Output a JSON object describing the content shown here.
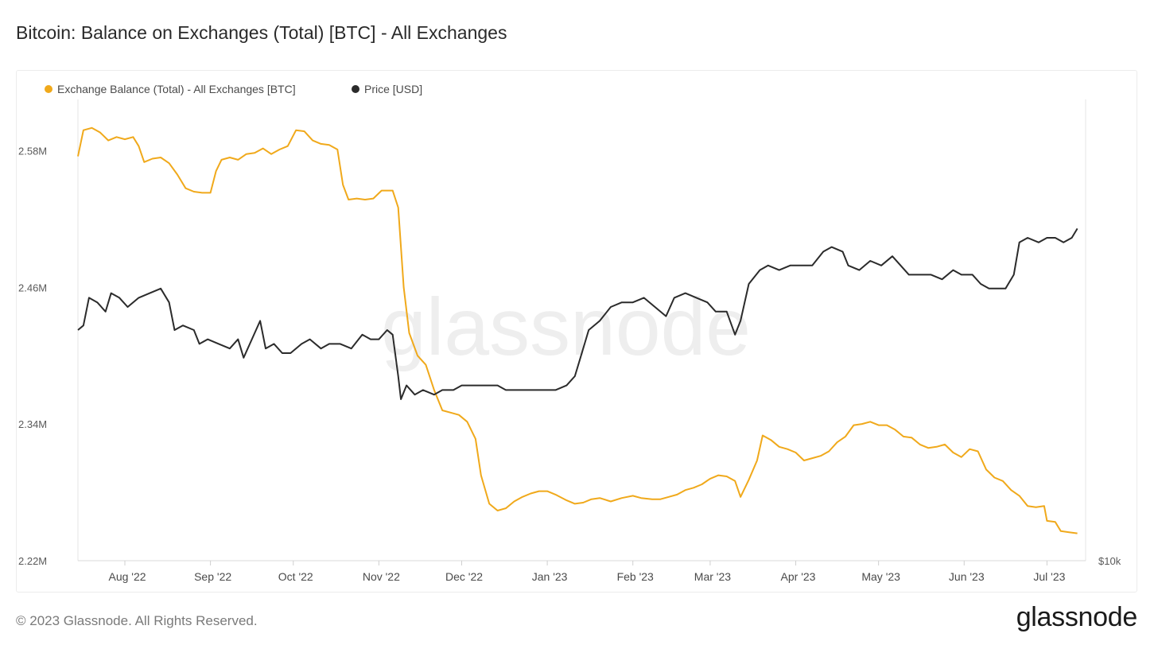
{
  "page": {
    "title": "Bitcoin: Balance on Exchanges (Total) [BTC] - All Exchanges",
    "footer": "© 2023 Glassnode. All Rights Reserved.",
    "logo": "glassnode",
    "watermark": "glassnode"
  },
  "chart_data": {
    "type": "line",
    "title": "Bitcoin: Balance on Exchanges (Total) [BTC] - All Exchanges",
    "legend": {
      "placement": "top-left"
    },
    "grid": false,
    "colors": {
      "balance": "#f0a91b",
      "price": "#2b2b2b"
    },
    "x": {
      "type": "date",
      "range": [
        "2022-07-15",
        "2023-07-15"
      ],
      "ticks": [
        {
          "date": "2022-08-01",
          "label": "Aug '22"
        },
        {
          "date": "2022-09-01",
          "label": "Sep '22"
        },
        {
          "date": "2022-10-01",
          "label": "Oct '22"
        },
        {
          "date": "2022-11-01",
          "label": "Nov '22"
        },
        {
          "date": "2022-12-01",
          "label": "Dec '22"
        },
        {
          "date": "2023-01-01",
          "label": "Jan '23"
        },
        {
          "date": "2023-02-01",
          "label": "Feb '23"
        },
        {
          "date": "2023-03-01",
          "label": "Mar '23"
        },
        {
          "date": "2023-04-01",
          "label": "Apr '23"
        },
        {
          "date": "2023-05-01",
          "label": "May '23"
        },
        {
          "date": "2023-06-01",
          "label": "Jun '23"
        },
        {
          "date": "2023-07-01",
          "label": "Jul '23"
        }
      ]
    },
    "y_left": {
      "ylim": [
        2.22,
        2.625
      ],
      "unit": "M",
      "ticks": [
        {
          "value": 2.22,
          "label": "2.22M"
        },
        {
          "value": 2.34,
          "label": "2.34M"
        },
        {
          "value": 2.46,
          "label": "2.46M"
        },
        {
          "value": 2.58,
          "label": "2.58M"
        }
      ]
    },
    "y_right": {
      "ticks": [
        {
          "label": "$10k"
        }
      ]
    },
    "series": [
      {
        "name": "Exchange Balance (Total) - All Exchanges [BTC]",
        "axis": "left",
        "points": [
          [
            "2022-07-15",
            2.575
          ],
          [
            "2022-07-17",
            2.598
          ],
          [
            "2022-07-20",
            2.6
          ],
          [
            "2022-07-23",
            2.596
          ],
          [
            "2022-07-26",
            2.589
          ],
          [
            "2022-07-29",
            2.592
          ],
          [
            "2022-08-01",
            2.59
          ],
          [
            "2022-08-04",
            2.592
          ],
          [
            "2022-08-06",
            2.584
          ],
          [
            "2022-08-08",
            2.57
          ],
          [
            "2022-08-11",
            2.573
          ],
          [
            "2022-08-14",
            2.574
          ],
          [
            "2022-08-17",
            2.569
          ],
          [
            "2022-08-20",
            2.559
          ],
          [
            "2022-08-23",
            2.547
          ],
          [
            "2022-08-26",
            2.544
          ],
          [
            "2022-08-29",
            2.543
          ],
          [
            "2022-09-01",
            2.543
          ],
          [
            "2022-09-03",
            2.562
          ],
          [
            "2022-09-05",
            2.572
          ],
          [
            "2022-09-08",
            2.574
          ],
          [
            "2022-09-11",
            2.572
          ],
          [
            "2022-09-14",
            2.577
          ],
          [
            "2022-09-17",
            2.578
          ],
          [
            "2022-09-20",
            2.582
          ],
          [
            "2022-09-23",
            2.577
          ],
          [
            "2022-09-26",
            2.581
          ],
          [
            "2022-09-29",
            2.584
          ],
          [
            "2022-10-02",
            2.598
          ],
          [
            "2022-10-05",
            2.597
          ],
          [
            "2022-10-08",
            2.589
          ],
          [
            "2022-10-11",
            2.586
          ],
          [
            "2022-10-14",
            2.585
          ],
          [
            "2022-10-17",
            2.581
          ],
          [
            "2022-10-19",
            2.55
          ],
          [
            "2022-10-21",
            2.537
          ],
          [
            "2022-10-24",
            2.538
          ],
          [
            "2022-10-27",
            2.537
          ],
          [
            "2022-10-30",
            2.538
          ],
          [
            "2022-11-02",
            2.545
          ],
          [
            "2022-11-06",
            2.545
          ],
          [
            "2022-11-08",
            2.53
          ],
          [
            "2022-11-10",
            2.46
          ],
          [
            "2022-11-12",
            2.42
          ],
          [
            "2022-11-15",
            2.4
          ],
          [
            "2022-11-18",
            2.392
          ],
          [
            "2022-11-21",
            2.37
          ],
          [
            "2022-11-24",
            2.352
          ],
          [
            "2022-11-27",
            2.35
          ],
          [
            "2022-11-30",
            2.348
          ],
          [
            "2022-12-03",
            2.342
          ],
          [
            "2022-12-06",
            2.327
          ],
          [
            "2022-12-08",
            2.295
          ],
          [
            "2022-12-11",
            2.27
          ],
          [
            "2022-12-14",
            2.264
          ],
          [
            "2022-12-17",
            2.266
          ],
          [
            "2022-12-20",
            2.272
          ],
          [
            "2022-12-23",
            2.276
          ],
          [
            "2022-12-26",
            2.279
          ],
          [
            "2022-12-29",
            2.281
          ],
          [
            "2023-01-01",
            2.281
          ],
          [
            "2023-01-04",
            2.278
          ],
          [
            "2023-01-08",
            2.273
          ],
          [
            "2023-01-11",
            2.27
          ],
          [
            "2023-01-14",
            2.271
          ],
          [
            "2023-01-17",
            2.274
          ],
          [
            "2023-01-20",
            2.275
          ],
          [
            "2023-01-24",
            2.272
          ],
          [
            "2023-01-28",
            2.275
          ],
          [
            "2023-02-01",
            2.277
          ],
          [
            "2023-02-04",
            2.275
          ],
          [
            "2023-02-08",
            2.274
          ],
          [
            "2023-02-11",
            2.274
          ],
          [
            "2023-02-14",
            2.276
          ],
          [
            "2023-02-17",
            2.278
          ],
          [
            "2023-02-20",
            2.282
          ],
          [
            "2023-02-23",
            2.284
          ],
          [
            "2023-02-26",
            2.287
          ],
          [
            "2023-03-01",
            2.292
          ],
          [
            "2023-03-04",
            2.295
          ],
          [
            "2023-03-07",
            2.294
          ],
          [
            "2023-03-10",
            2.29
          ],
          [
            "2023-03-12",
            2.276
          ],
          [
            "2023-03-15",
            2.291
          ],
          [
            "2023-03-18",
            2.308
          ],
          [
            "2023-03-20",
            2.33
          ],
          [
            "2023-03-23",
            2.326
          ],
          [
            "2023-03-26",
            2.32
          ],
          [
            "2023-03-29",
            2.318
          ],
          [
            "2023-04-01",
            2.315
          ],
          [
            "2023-04-04",
            2.308
          ],
          [
            "2023-04-07",
            2.31
          ],
          [
            "2023-04-10",
            2.312
          ],
          [
            "2023-04-13",
            2.316
          ],
          [
            "2023-04-16",
            2.324
          ],
          [
            "2023-04-19",
            2.329
          ],
          [
            "2023-04-22",
            2.339
          ],
          [
            "2023-04-25",
            2.34
          ],
          [
            "2023-04-28",
            2.342
          ],
          [
            "2023-05-01",
            2.339
          ],
          [
            "2023-05-04",
            2.339
          ],
          [
            "2023-05-07",
            2.335
          ],
          [
            "2023-05-10",
            2.329
          ],
          [
            "2023-05-13",
            2.328
          ],
          [
            "2023-05-16",
            2.322
          ],
          [
            "2023-05-19",
            2.319
          ],
          [
            "2023-05-22",
            2.32
          ],
          [
            "2023-05-25",
            2.322
          ],
          [
            "2023-05-28",
            2.315
          ],
          [
            "2023-05-31",
            2.311
          ],
          [
            "2023-06-03",
            2.318
          ],
          [
            "2023-06-06",
            2.316
          ],
          [
            "2023-06-09",
            2.3
          ],
          [
            "2023-06-12",
            2.293
          ],
          [
            "2023-06-15",
            2.29
          ],
          [
            "2023-06-18",
            2.282
          ],
          [
            "2023-06-21",
            2.277
          ],
          [
            "2023-06-24",
            2.268
          ],
          [
            "2023-06-27",
            2.267
          ],
          [
            "2023-06-30",
            2.268
          ],
          [
            "2023-07-01",
            2.255
          ],
          [
            "2023-07-04",
            2.254
          ],
          [
            "2023-07-06",
            2.246
          ],
          [
            "2023-07-09",
            2.245
          ],
          [
            "2023-07-12",
            2.244
          ]
        ]
      },
      {
        "name": "Price [USD]",
        "axis": "right",
        "relative_level": [
          [
            "2022-07-15",
            0.5
          ],
          [
            "2022-07-17",
            0.51
          ],
          [
            "2022-07-19",
            0.57
          ],
          [
            "2022-07-22",
            0.56
          ],
          [
            "2022-07-25",
            0.54
          ],
          [
            "2022-07-27",
            0.58
          ],
          [
            "2022-07-30",
            0.57
          ],
          [
            "2022-08-02",
            0.55
          ],
          [
            "2022-08-06",
            0.57
          ],
          [
            "2022-08-10",
            0.58
          ],
          [
            "2022-08-14",
            0.59
          ],
          [
            "2022-08-17",
            0.56
          ],
          [
            "2022-08-19",
            0.5
          ],
          [
            "2022-08-22",
            0.51
          ],
          [
            "2022-08-26",
            0.5
          ],
          [
            "2022-08-28",
            0.47
          ],
          [
            "2022-08-31",
            0.48
          ],
          [
            "2022-09-04",
            0.47
          ],
          [
            "2022-09-08",
            0.46
          ],
          [
            "2022-09-11",
            0.48
          ],
          [
            "2022-09-13",
            0.44
          ],
          [
            "2022-09-16",
            0.48
          ],
          [
            "2022-09-19",
            0.52
          ],
          [
            "2022-09-21",
            0.46
          ],
          [
            "2022-09-24",
            0.47
          ],
          [
            "2022-09-27",
            0.45
          ],
          [
            "2022-09-30",
            0.45
          ],
          [
            "2022-10-04",
            0.47
          ],
          [
            "2022-10-07",
            0.48
          ],
          [
            "2022-10-11",
            0.46
          ],
          [
            "2022-10-14",
            0.47
          ],
          [
            "2022-10-18",
            0.47
          ],
          [
            "2022-10-22",
            0.46
          ],
          [
            "2022-10-26",
            0.49
          ],
          [
            "2022-10-29",
            0.48
          ],
          [
            "2022-11-01",
            0.48
          ],
          [
            "2022-11-04",
            0.5
          ],
          [
            "2022-11-06",
            0.49
          ],
          [
            "2022-11-08",
            0.4
          ],
          [
            "2022-11-09",
            0.35
          ],
          [
            "2022-11-11",
            0.38
          ],
          [
            "2022-11-14",
            0.36
          ],
          [
            "2022-11-17",
            0.37
          ],
          [
            "2022-11-21",
            0.36
          ],
          [
            "2022-11-24",
            0.37
          ],
          [
            "2022-11-28",
            0.37
          ],
          [
            "2022-12-01",
            0.38
          ],
          [
            "2022-12-05",
            0.38
          ],
          [
            "2022-12-09",
            0.38
          ],
          [
            "2022-12-14",
            0.38
          ],
          [
            "2022-12-17",
            0.37
          ],
          [
            "2022-12-21",
            0.37
          ],
          [
            "2022-12-25",
            0.37
          ],
          [
            "2022-12-30",
            0.37
          ],
          [
            "2023-01-04",
            0.37
          ],
          [
            "2023-01-08",
            0.38
          ],
          [
            "2023-01-11",
            0.4
          ],
          [
            "2023-01-13",
            0.44
          ],
          [
            "2023-01-16",
            0.5
          ],
          [
            "2023-01-20",
            0.52
          ],
          [
            "2023-01-24",
            0.55
          ],
          [
            "2023-01-28",
            0.56
          ],
          [
            "2023-02-01",
            0.56
          ],
          [
            "2023-02-05",
            0.57
          ],
          [
            "2023-02-09",
            0.55
          ],
          [
            "2023-02-13",
            0.53
          ],
          [
            "2023-02-16",
            0.57
          ],
          [
            "2023-02-20",
            0.58
          ],
          [
            "2023-02-24",
            0.57
          ],
          [
            "2023-02-28",
            0.56
          ],
          [
            "2023-03-03",
            0.54
          ],
          [
            "2023-03-07",
            0.54
          ],
          [
            "2023-03-10",
            0.49
          ],
          [
            "2023-03-12",
            0.52
          ],
          [
            "2023-03-15",
            0.6
          ],
          [
            "2023-03-19",
            0.63
          ],
          [
            "2023-03-22",
            0.64
          ],
          [
            "2023-03-26",
            0.63
          ],
          [
            "2023-03-30",
            0.64
          ],
          [
            "2023-04-03",
            0.64
          ],
          [
            "2023-04-07",
            0.64
          ],
          [
            "2023-04-11",
            0.67
          ],
          [
            "2023-04-14",
            0.68
          ],
          [
            "2023-04-18",
            0.67
          ],
          [
            "2023-04-20",
            0.64
          ],
          [
            "2023-04-24",
            0.63
          ],
          [
            "2023-04-28",
            0.65
          ],
          [
            "2023-05-02",
            0.64
          ],
          [
            "2023-05-06",
            0.66
          ],
          [
            "2023-05-09",
            0.64
          ],
          [
            "2023-05-12",
            0.62
          ],
          [
            "2023-05-16",
            0.62
          ],
          [
            "2023-05-20",
            0.62
          ],
          [
            "2023-05-24",
            0.61
          ],
          [
            "2023-05-28",
            0.63
          ],
          [
            "2023-05-31",
            0.62
          ],
          [
            "2023-06-04",
            0.62
          ],
          [
            "2023-06-07",
            0.6
          ],
          [
            "2023-06-10",
            0.59
          ],
          [
            "2023-06-14",
            0.59
          ],
          [
            "2023-06-16",
            0.59
          ],
          [
            "2023-06-19",
            0.62
          ],
          [
            "2023-06-21",
            0.69
          ],
          [
            "2023-06-24",
            0.7
          ],
          [
            "2023-06-28",
            0.69
          ],
          [
            "2023-07-01",
            0.7
          ],
          [
            "2023-07-04",
            0.7
          ],
          [
            "2023-07-07",
            0.69
          ],
          [
            "2023-07-10",
            0.7
          ],
          [
            "2023-07-12",
            0.72
          ]
        ]
      }
    ]
  }
}
